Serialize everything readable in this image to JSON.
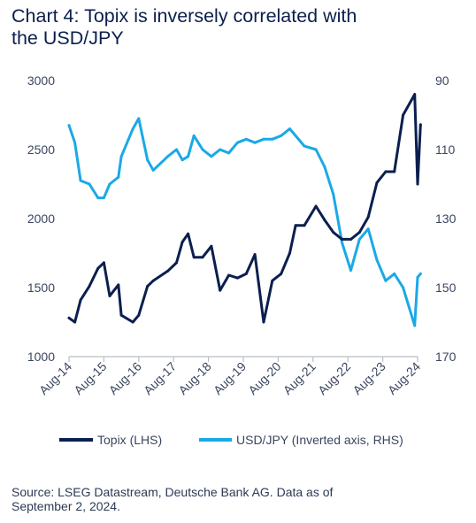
{
  "title": {
    "line1": "Chart 4: Topix is inversely correlated with",
    "line2": "the USD/JPY"
  },
  "source": {
    "line1": "Source: LSEG Datastream, Deutsche Bank AG. Data as of",
    "line2": "September 2, 2024."
  },
  "colors": {
    "topix": "#0b1f4e",
    "usdjpy": "#1aa9e6"
  },
  "chart_data": {
    "type": "line",
    "x_ticks": [
      "Aug-14",
      "Aug-15",
      "Aug-16",
      "Aug-17",
      "Aug-18",
      "Aug-19",
      "Aug-20",
      "Aug-21",
      "Aug-22",
      "Aug-23",
      "Aug-24"
    ],
    "y_left": {
      "ticks": [
        "3000",
        "2500",
        "2000",
        "1500",
        "1000"
      ],
      "range": [
        1000,
        3000
      ]
    },
    "y_right": {
      "ticks": [
        "90",
        "110",
        "130",
        "150",
        "170"
      ],
      "range": [
        90,
        170
      ],
      "inverted": true
    },
    "legend": [
      "Topix (LHS)",
      "USD/JPY (Inverted axis, RHS)"
    ],
    "legend_position": "bottom",
    "grid": false,
    "series": [
      {
        "name": "Topix (LHS)",
        "axis": "left",
        "x": [
          "2014-08",
          "2014-10",
          "2014-12",
          "2015-03",
          "2015-06",
          "2015-08",
          "2015-10",
          "2016-01",
          "2016-02",
          "2016-06",
          "2016-08",
          "2016-11",
          "2017-01",
          "2017-06",
          "2017-09",
          "2017-11",
          "2018-01",
          "2018-03",
          "2018-06",
          "2018-09",
          "2018-12",
          "2019-03",
          "2019-06",
          "2019-09",
          "2019-12",
          "2020-03",
          "2020-06",
          "2020-09",
          "2020-12",
          "2021-02",
          "2021-05",
          "2021-09",
          "2021-12",
          "2022-03",
          "2022-06",
          "2022-09",
          "2022-12",
          "2023-03",
          "2023-06",
          "2023-09",
          "2023-12",
          "2024-03",
          "2024-07",
          "2024-08",
          "2024-09"
        ],
        "values": [
          1280,
          1250,
          1410,
          1510,
          1640,
          1680,
          1440,
          1520,
          1300,
          1250,
          1300,
          1510,
          1550,
          1620,
          1680,
          1830,
          1890,
          1720,
          1720,
          1800,
          1480,
          1590,
          1570,
          1600,
          1740,
          1250,
          1550,
          1600,
          1750,
          1950,
          1950,
          2090,
          1990,
          1900,
          1850,
          1850,
          1900,
          2010,
          2260,
          2340,
          2340,
          2750,
          2900,
          2250,
          2680
        ]
      },
      {
        "name": "USD/JPY (Inverted axis, RHS)",
        "axis": "right",
        "x": [
          "2014-08",
          "2014-10",
          "2014-12",
          "2015-03",
          "2015-06",
          "2015-08",
          "2015-10",
          "2016-01",
          "2016-02",
          "2016-06",
          "2016-08",
          "2016-11",
          "2017-01",
          "2017-06",
          "2017-09",
          "2017-11",
          "2018-01",
          "2018-03",
          "2018-06",
          "2018-09",
          "2018-12",
          "2019-03",
          "2019-06",
          "2019-09",
          "2019-12",
          "2020-03",
          "2020-06",
          "2020-09",
          "2020-12",
          "2021-02",
          "2021-05",
          "2021-09",
          "2021-12",
          "2022-03",
          "2022-06",
          "2022-09",
          "2022-12",
          "2023-03",
          "2023-06",
          "2023-09",
          "2023-12",
          "2024-03",
          "2024-07",
          "2024-08",
          "2024-09"
        ],
        "values": [
          103,
          108,
          119,
          120,
          124,
          124,
          120,
          118,
          112,
          104,
          101,
          113,
          116,
          112,
          110,
          113,
          112,
          106,
          110,
          112,
          110,
          111,
          108,
          107,
          108,
          107,
          107,
          106,
          104,
          106,
          109,
          110,
          115,
          123,
          137,
          145,
          136,
          133,
          142,
          148,
          146,
          150,
          161,
          147,
          146
        ]
      }
    ]
  }
}
